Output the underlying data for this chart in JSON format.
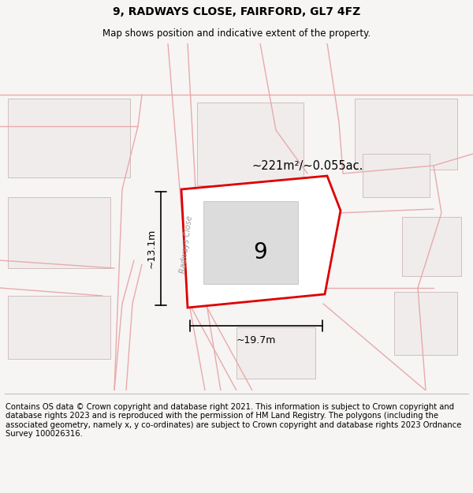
{
  "title": "9, RADWAYS CLOSE, FAIRFORD, GL7 4FZ",
  "subtitle": "Map shows position and indicative extent of the property.",
  "footer": "Contains OS data © Crown copyright and database right 2021. This information is subject to Crown copyright and database rights 2023 and is reproduced with the permission of HM Land Registry. The polygons (including the associated geometry, namely x, y co-ordinates) are subject to Crown copyright and database rights 2023 Ordnance Survey 100026316.",
  "area_label": "~221m²/~0.055ac.",
  "number_label": "9",
  "dim_width": "~19.7m",
  "dim_height": "~13.1m",
  "road_label": "Radways Close",
  "bg_color": "#f7f4f4",
  "map_bg": "#f9f7f7",
  "plot_color": "#dd0000",
  "building_fill": "#dcdcdc",
  "other_outline": "#ccb8b8",
  "other_fill": "#f0ecec",
  "road_line_color": "#e8aaaa",
  "title_fontsize": 10,
  "subtitle_fontsize": 8.5,
  "footer_fontsize": 7.2
}
